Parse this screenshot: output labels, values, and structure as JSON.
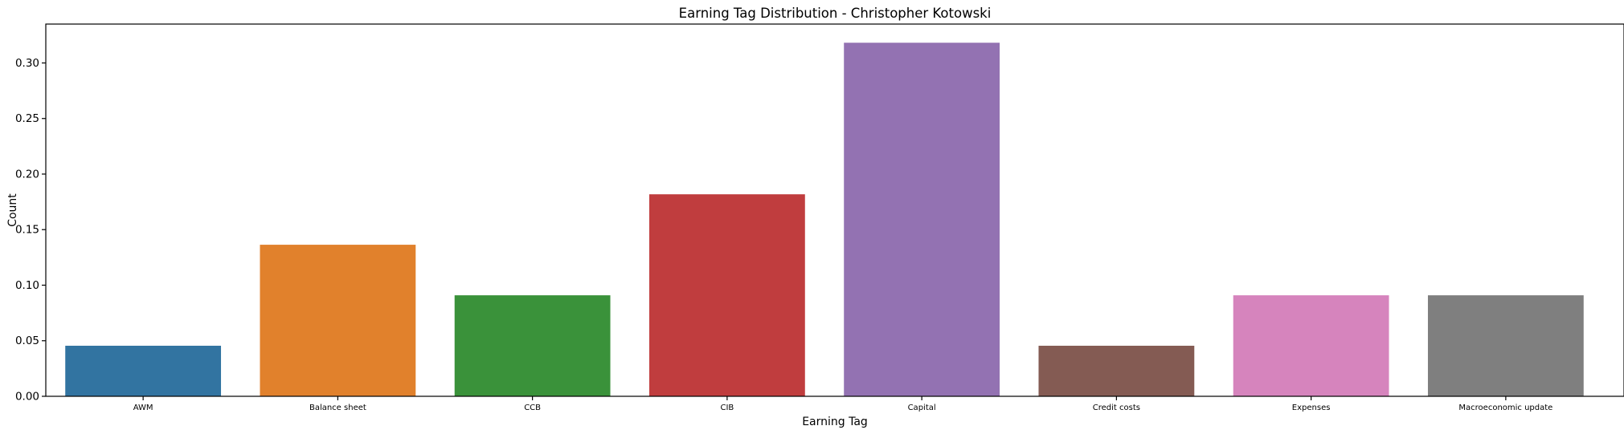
{
  "chart_data": {
    "type": "bar",
    "title": "Earning Tag Distribution - Christopher Kotowski",
    "xlabel": "Earning Tag",
    "ylabel": "Count",
    "categories": [
      "AWM",
      "Balance sheet",
      "CCB",
      "CIB",
      "Capital",
      "Credit costs",
      "Expenses",
      "Macroeconomic update"
    ],
    "values": [
      0.0455,
      0.1364,
      0.0909,
      0.1818,
      0.3182,
      0.0455,
      0.0909,
      0.0909
    ],
    "colors": [
      "#3274a1",
      "#e1812c",
      "#3a923a",
      "#c03d3e",
      "#9372b2",
      "#845b53",
      "#d684bd",
      "#7f7f7f"
    ],
    "yticks": [
      "0.00",
      "0.05",
      "0.10",
      "0.15",
      "0.20",
      "0.25",
      "0.30"
    ],
    "ylim": [
      0,
      0.335
    ],
    "grid": false,
    "legend": "none"
  }
}
